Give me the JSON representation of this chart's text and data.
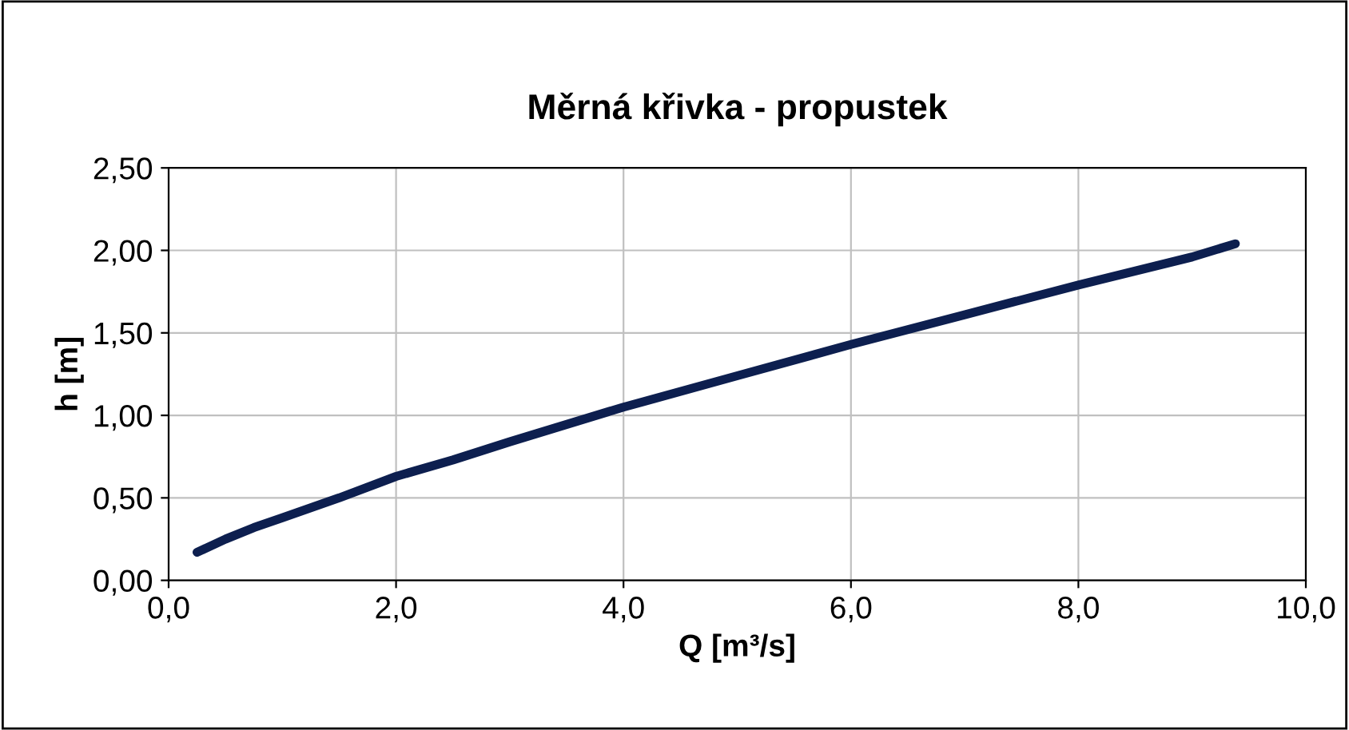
{
  "chart_data": {
    "type": "line",
    "title": "Měrná křivka - propustek",
    "xlabel": "Q [m³/s]",
    "ylabel": "h [m]",
    "x": [
      0.25,
      0.5,
      0.75,
      1.0,
      1.5,
      2.0,
      2.5,
      3.0,
      4.0,
      5.0,
      6.0,
      7.0,
      8.0,
      9.0,
      9.38
    ],
    "series": [
      {
        "color": "#0d1f4f",
        "values": [
          0.17,
          0.25,
          0.32,
          0.38,
          0.5,
          0.63,
          0.73,
          0.84,
          1.05,
          1.24,
          1.43,
          1.61,
          1.79,
          1.96,
          2.04
        ]
      }
    ],
    "xlim": [
      0,
      10
    ],
    "ylim": [
      0,
      2.5
    ],
    "xticks": [
      {
        "value": 0,
        "label": "0,0"
      },
      {
        "value": 2,
        "label": "2,0"
      },
      {
        "value": 4,
        "label": "4,0"
      },
      {
        "value": 6,
        "label": "6,0"
      },
      {
        "value": 8,
        "label": "8,0"
      },
      {
        "value": 10,
        "label": "10,0"
      }
    ],
    "yticks": [
      {
        "value": 0,
        "label": "0,00"
      },
      {
        "value": 0.5,
        "label": "0,50"
      },
      {
        "value": 1,
        "label": "1,00"
      },
      {
        "value": 1.5,
        "label": "1,50"
      },
      {
        "value": 2,
        "label": "2,00"
      },
      {
        "value": 2.5,
        "label": "2,50"
      }
    ],
    "grid": true,
    "marker": "none",
    "line_style": "solid"
  }
}
